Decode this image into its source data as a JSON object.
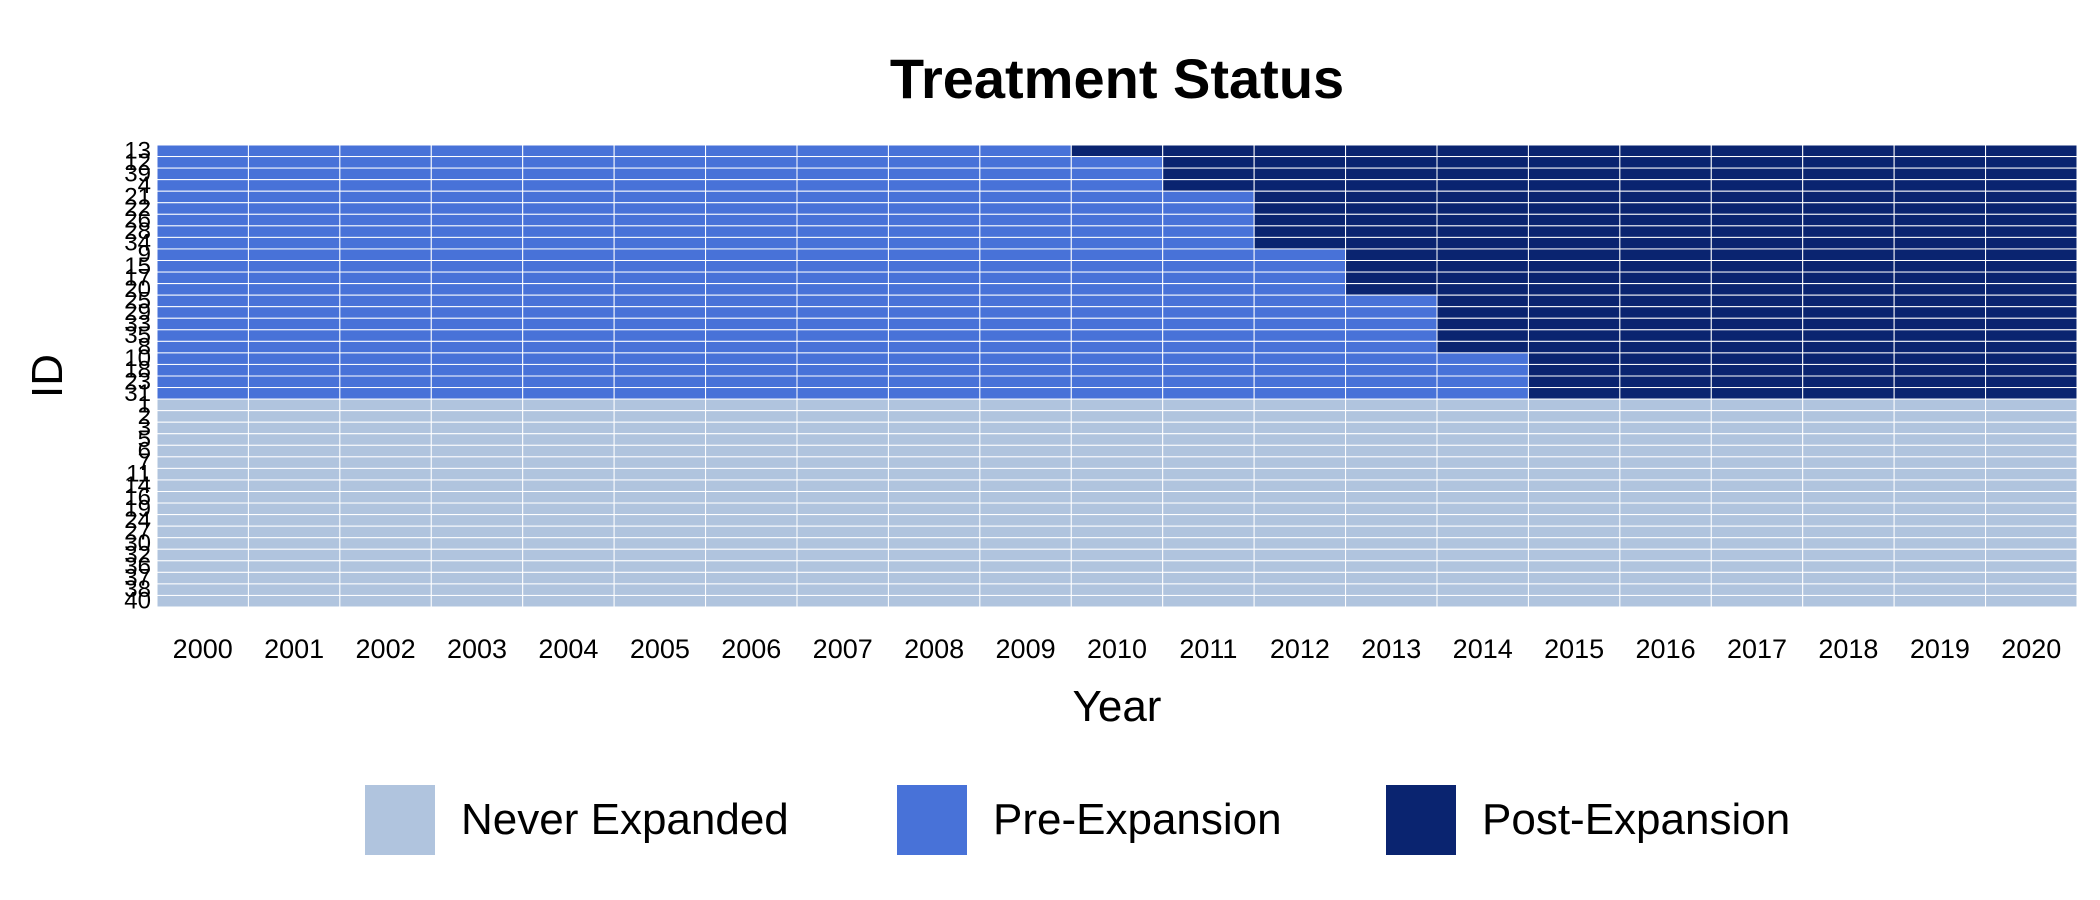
{
  "chart_data": {
    "type": "heatmap",
    "title": "Treatment Status",
    "xlabel": "Year",
    "ylabel": "ID",
    "years": [
      "2000",
      "2001",
      "2002",
      "2003",
      "2004",
      "2005",
      "2006",
      "2007",
      "2008",
      "2009",
      "2010",
      "2011",
      "2012",
      "2013",
      "2014",
      "2015",
      "2016",
      "2017",
      "2018",
      "2019",
      "2020"
    ],
    "ids_top_to_bottom": [
      "13",
      "12",
      "39",
      "4",
      "21",
      "22",
      "26",
      "28",
      "34",
      "9",
      "15",
      "17",
      "20",
      "25",
      "29",
      "33",
      "35",
      "8",
      "10",
      "18",
      "23",
      "31",
      "1",
      "2",
      "3",
      "5",
      "6",
      "7",
      "11",
      "14",
      "16",
      "19",
      "24",
      "27",
      "30",
      "32",
      "36",
      "37",
      "38",
      "40"
    ],
    "expansion_year_by_id": {
      "13": 2010,
      "12": 2011,
      "39": 2011,
      "4": 2011,
      "21": 2012,
      "22": 2012,
      "26": 2012,
      "28": 2012,
      "34": 2012,
      "9": 2013,
      "15": 2013,
      "17": 2013,
      "20": 2013,
      "25": 2014,
      "29": 2014,
      "33": 2014,
      "35": 2014,
      "8": 2014,
      "10": 2015,
      "18": 2015,
      "23": 2015,
      "31": 2015
    },
    "never_expanded_ids": [
      "1",
      "2",
      "3",
      "5",
      "6",
      "7",
      "11",
      "14",
      "16",
      "19",
      "24",
      "27",
      "30",
      "32",
      "36",
      "37",
      "38",
      "40"
    ],
    "categories": [
      "Never Expanded",
      "Pre-Expansion",
      "Post-Expansion"
    ],
    "colors": {
      "Never Expanded": "#B0C4DE",
      "Pre-Expansion": "#4872D8",
      "Post-Expansion": "#0A2470",
      "cell_border": "#ffffff"
    },
    "grid": false,
    "legend_position": "bottom"
  }
}
